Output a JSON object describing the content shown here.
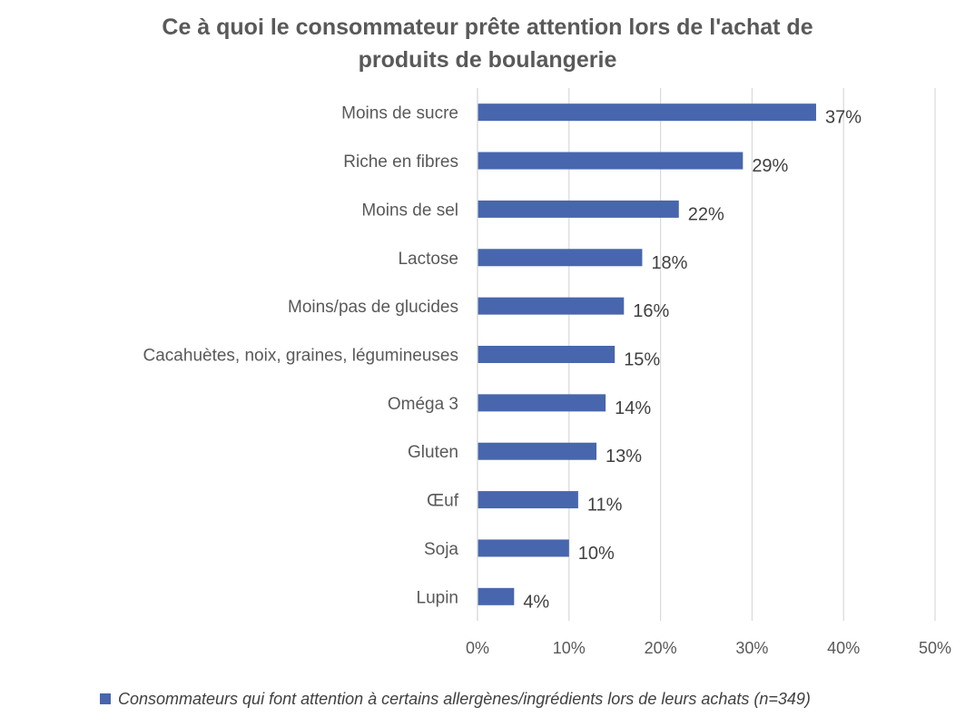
{
  "chart_data": {
    "type": "bar",
    "orientation": "horizontal",
    "title_lines": [
      "Ce à quoi le consommateur prête attention lors de l'achat de",
      "produits de boulangerie"
    ],
    "categories": [
      "Moins de sucre",
      "Riche en fibres",
      "Moins de sel",
      "Lactose",
      "Moins/pas de glucides",
      "Cacahuètes, noix, graines, légumineuses",
      "Oméga 3",
      "Gluten",
      "Œuf",
      "Soja",
      "Lupin"
    ],
    "values": [
      37,
      29,
      22,
      18,
      16,
      15,
      14,
      13,
      11,
      10,
      4
    ],
    "value_labels": [
      "37%",
      "29%",
      "22%",
      "18%",
      "16%",
      "15%",
      "14%",
      "13%",
      "11%",
      "10%",
      "4%"
    ],
    "series_name": "Consommateurs qui font attention à certains allergènes/ingrédients lors de leurs achats (n=349)",
    "xlim": [
      0,
      50
    ],
    "x_ticks": [
      0,
      10,
      20,
      30,
      40,
      50
    ],
    "x_tick_labels": [
      "0%",
      "10%",
      "20%",
      "30%",
      "40%",
      "50%"
    ],
    "grid": true,
    "legend_position": "bottom",
    "colors": {
      "bar": "#4866ad",
      "grid": "#d9d9d9",
      "text": "#595959",
      "label": "#404040"
    }
  }
}
